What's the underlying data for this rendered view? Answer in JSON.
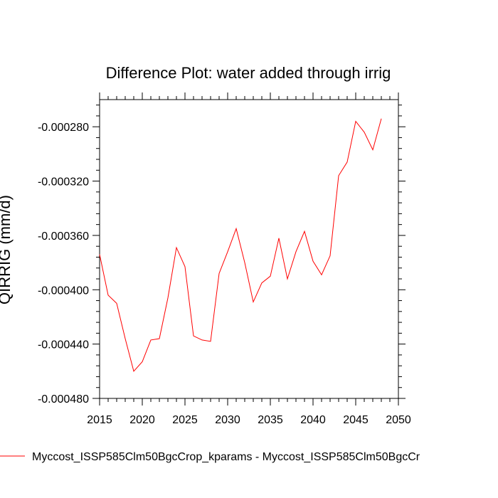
{
  "chart_data": {
    "type": "line",
    "title": "Difference Plot: water added through irrig",
    "xlabel": "",
    "ylabel": "QIRRIG  (mm/d)",
    "xlim": [
      2015,
      2050
    ],
    "ylim": [
      -0.00048,
      -0.00026
    ],
    "xticks": [
      2015,
      2020,
      2025,
      2030,
      2035,
      2040,
      2045,
      2050
    ],
    "yticks": [
      -0.00048,
      -0.00044,
      -0.0004,
      -0.00036,
      -0.00032,
      -0.00028
    ],
    "ytick_labels": [
      "-0.000480",
      "-0.000440",
      "-0.000400",
      "-0.000360",
      "-0.000320",
      "-0.000280"
    ],
    "xtick_labels": [
      "2015",
      "2020",
      "2025",
      "2030",
      "2035",
      "2040",
      "2045",
      "2050"
    ],
    "series": [
      {
        "name": "Myccost_ISSP585Clm50BgcCrop_kparams - Myccost_ISSP585Clm50BgcCr",
        "color": "#ff0000",
        "x": [
          2015,
          2016,
          2017,
          2018,
          2019,
          2020,
          2021,
          2022,
          2023,
          2024,
          2025,
          2026,
          2027,
          2028,
          2029,
          2030,
          2031,
          2032,
          2033,
          2034,
          2035,
          2036,
          2037,
          2038,
          2039,
          2040,
          2041,
          2042,
          2043,
          2044,
          2045,
          2046,
          2047,
          2048
        ],
        "values": [
          -0.000374,
          -0.000404,
          -0.00041,
          -0.000436,
          -0.00046,
          -0.000453,
          -0.000437,
          -0.000436,
          -0.000406,
          -0.000369,
          -0.000383,
          -0.000434,
          -0.000437,
          -0.000438,
          -0.000388,
          -0.000372,
          -0.000355,
          -0.00038,
          -0.000409,
          -0.000395,
          -0.00039,
          -0.000362,
          -0.000392,
          -0.000372,
          -0.000357,
          -0.000379,
          -0.000389,
          -0.000375,
          -0.000316,
          -0.000306,
          -0.000276,
          -0.000284,
          -0.000297,
          -0.000274
        ]
      }
    ],
    "legend": "bottom-left"
  }
}
